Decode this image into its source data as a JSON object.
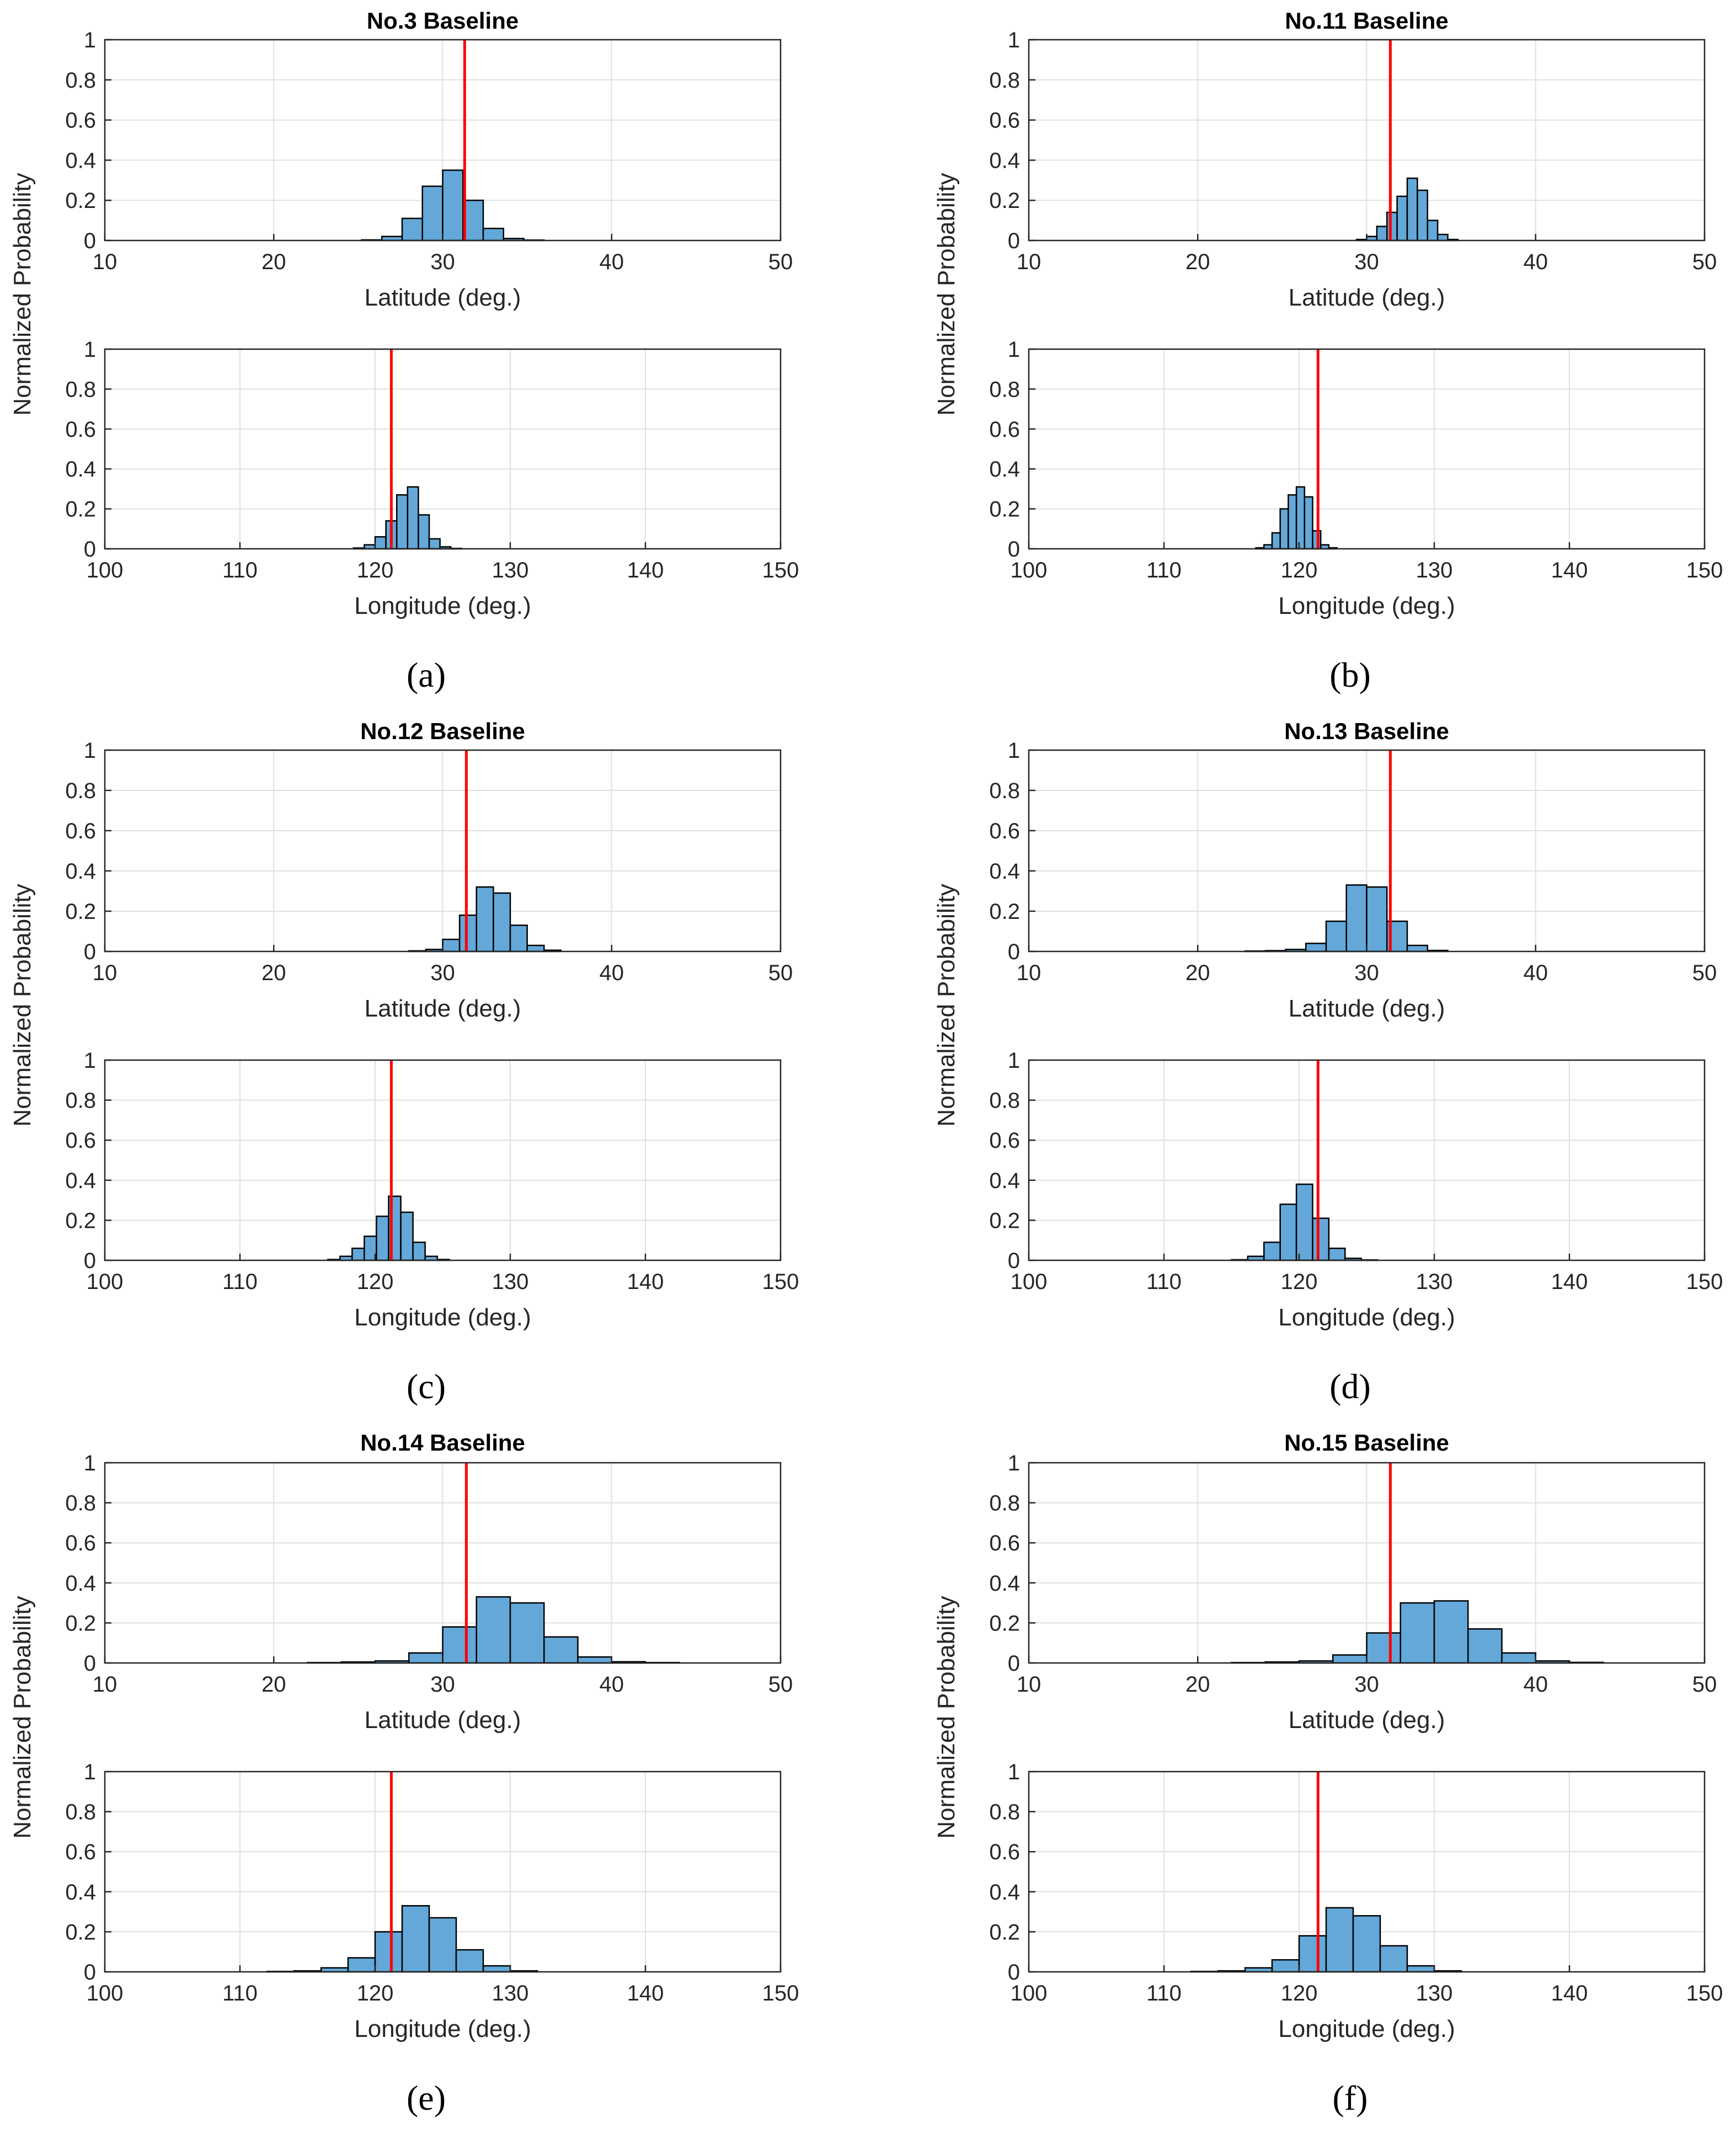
{
  "colors": {
    "bar_fill": "#63a8d8",
    "bar_edge": "#000000",
    "reference_line": "#ff0000",
    "grid": "#e0e0e0"
  },
  "chart_data": [
    {
      "panel": "(a)",
      "title": "No.3 Baseline",
      "ylabel": "Normalized Probability",
      "latitude": {
        "type": "bar",
        "xlabel": "Latitude (deg.)",
        "xlim": [
          10,
          50
        ],
        "ylim": [
          0,
          1
        ],
        "xticks": [
          10,
          20,
          30,
          40,
          50
        ],
        "yticks": [
          0,
          0.2,
          0.4,
          0.6,
          0.8,
          1
        ],
        "bin_width": 1.2,
        "bin_start": 25.2,
        "values": [
          0.003,
          0.02,
          0.11,
          0.27,
          0.35,
          0.2,
          0.06,
          0.01,
          0.002
        ],
        "reference": 31.3
      },
      "longitude": {
        "type": "bar",
        "xlabel": "Longitude (deg.)",
        "xlim": [
          100,
          150
        ],
        "ylim": [
          0,
          1
        ],
        "xticks": [
          100,
          110,
          120,
          130,
          140,
          150
        ],
        "yticks": [
          0,
          0.2,
          0.4,
          0.6,
          0.8,
          1
        ],
        "bin_width": 0.8,
        "bin_start": 118.4,
        "values": [
          0.004,
          0.02,
          0.06,
          0.14,
          0.27,
          0.31,
          0.17,
          0.05,
          0.01,
          0.002
        ],
        "reference": 121.2
      }
    },
    {
      "panel": "(b)",
      "title": "No.11 Baseline",
      "ylabel": "Normalized Probability",
      "latitude": {
        "type": "bar",
        "xlabel": "Latitude (deg.)",
        "xlim": [
          10,
          50
        ],
        "ylim": [
          0,
          1
        ],
        "xticks": [
          10,
          20,
          30,
          40,
          50
        ],
        "yticks": [
          0,
          0.2,
          0.4,
          0.6,
          0.8,
          1
        ],
        "bin_width": 0.6,
        "bin_start": 29.4,
        "values": [
          0.005,
          0.02,
          0.07,
          0.14,
          0.22,
          0.31,
          0.25,
          0.1,
          0.03,
          0.005
        ],
        "reference": 31.4
      },
      "longitude": {
        "type": "bar",
        "xlabel": "Longitude (deg.)",
        "xlim": [
          100,
          150
        ],
        "ylim": [
          0,
          1
        ],
        "xticks": [
          100,
          110,
          120,
          130,
          140,
          150
        ],
        "yticks": [
          0,
          0.2,
          0.4,
          0.6,
          0.8,
          1
        ],
        "bin_width": 0.6,
        "bin_start": 116.8,
        "values": [
          0.005,
          0.02,
          0.08,
          0.2,
          0.27,
          0.31,
          0.26,
          0.09,
          0.02,
          0.005
        ],
        "reference": 121.4
      }
    },
    {
      "panel": "(c)",
      "title": "No.12 Baseline",
      "ylabel": "Normalized Probability",
      "latitude": {
        "type": "bar",
        "xlabel": "Latitude (deg.)",
        "xlim": [
          10,
          50
        ],
        "ylim": [
          0,
          1
        ],
        "xticks": [
          10,
          20,
          30,
          40,
          50
        ],
        "yticks": [
          0,
          0.2,
          0.4,
          0.6,
          0.8,
          1
        ],
        "bin_width": 1.0,
        "bin_start": 28.0,
        "values": [
          0.003,
          0.01,
          0.06,
          0.18,
          0.32,
          0.29,
          0.13,
          0.03,
          0.006
        ],
        "reference": 31.4
      },
      "longitude": {
        "type": "bar",
        "xlabel": "Longitude (deg.)",
        "xlim": [
          100,
          150
        ],
        "ylim": [
          0,
          1
        ],
        "xticks": [
          100,
          110,
          120,
          130,
          140,
          150
        ],
        "yticks": [
          0,
          0.2,
          0.4,
          0.6,
          0.8,
          1
        ],
        "bin_width": 0.9,
        "bin_start": 116.5,
        "values": [
          0.004,
          0.02,
          0.06,
          0.12,
          0.22,
          0.32,
          0.24,
          0.09,
          0.02,
          0.004
        ],
        "reference": 121.2
      }
    },
    {
      "panel": "(d)",
      "title": "No.13 Baseline",
      "ylabel": "Normalized Probability",
      "latitude": {
        "type": "bar",
        "xlabel": "Latitude (deg.)",
        "xlim": [
          10,
          50
        ],
        "ylim": [
          0,
          1
        ],
        "xticks": [
          10,
          20,
          30,
          40,
          50
        ],
        "yticks": [
          0,
          0.2,
          0.4,
          0.6,
          0.8,
          1
        ],
        "bin_width": 1.2,
        "bin_start": 22.8,
        "values": [
          0.002,
          0.004,
          0.01,
          0.04,
          0.15,
          0.33,
          0.32,
          0.15,
          0.03,
          0.005
        ],
        "reference": 31.4
      },
      "longitude": {
        "type": "bar",
        "xlabel": "Longitude (deg.)",
        "xlim": [
          100,
          150
        ],
        "ylim": [
          0,
          1
        ],
        "xticks": [
          100,
          110,
          120,
          130,
          140,
          150
        ],
        "yticks": [
          0,
          0.2,
          0.4,
          0.6,
          0.8,
          1
        ],
        "bin_width": 1.2,
        "bin_start": 115.0,
        "values": [
          0.003,
          0.02,
          0.09,
          0.28,
          0.38,
          0.21,
          0.06,
          0.01,
          0.002
        ],
        "reference": 121.4
      }
    },
    {
      "panel": "(e)",
      "title": "No.14 Baseline",
      "ylabel": "Normalized Probability",
      "latitude": {
        "type": "bar",
        "xlabel": "Latitude (deg.)",
        "xlim": [
          10,
          50
        ],
        "ylim": [
          0,
          1
        ],
        "xticks": [
          10,
          20,
          30,
          40,
          50
        ],
        "yticks": [
          0,
          0.2,
          0.4,
          0.6,
          0.8,
          1
        ],
        "bin_width": 2.0,
        "bin_start": 22.0,
        "values": [
          0.002,
          0.005,
          0.01,
          0.05,
          0.18,
          0.33,
          0.3,
          0.13,
          0.03,
          0.006,
          0.002
        ],
        "reference": 31.4
      },
      "longitude": {
        "type": "bar",
        "xlabel": "Longitude (deg.)",
        "xlim": [
          100,
          150
        ],
        "ylim": [
          0,
          1
        ],
        "xticks": [
          100,
          110,
          120,
          130,
          140,
          150
        ],
        "yticks": [
          0,
          0.2,
          0.4,
          0.6,
          0.8,
          1
        ],
        "bin_width": 2.0,
        "bin_start": 112.0,
        "values": [
          0.002,
          0.005,
          0.02,
          0.07,
          0.2,
          0.33,
          0.27,
          0.11,
          0.03,
          0.005
        ],
        "reference": 121.2
      }
    },
    {
      "panel": "(f)",
      "title": "No.15 Baseline",
      "ylabel": "Normalized Probability",
      "latitude": {
        "type": "bar",
        "xlabel": "Latitude (deg.)",
        "xlim": [
          10,
          50
        ],
        "ylim": [
          0,
          1
        ],
        "xticks": [
          10,
          20,
          30,
          40,
          50
        ],
        "yticks": [
          0,
          0.2,
          0.4,
          0.6,
          0.8,
          1
        ],
        "bin_width": 2.0,
        "bin_start": 22.0,
        "values": [
          0.002,
          0.005,
          0.01,
          0.04,
          0.15,
          0.3,
          0.31,
          0.17,
          0.05,
          0.01,
          0.003
        ],
        "reference": 31.4
      },
      "longitude": {
        "type": "bar",
        "xlabel": "Longitude (deg.)",
        "xlim": [
          100,
          150
        ],
        "ylim": [
          0,
          1
        ],
        "xticks": [
          100,
          110,
          120,
          130,
          140,
          150
        ],
        "yticks": [
          0,
          0.2,
          0.4,
          0.6,
          0.8,
          1
        ],
        "bin_width": 2.0,
        "bin_start": 112.0,
        "values": [
          0.002,
          0.005,
          0.02,
          0.06,
          0.18,
          0.32,
          0.28,
          0.13,
          0.03,
          0.005
        ],
        "reference": 121.4
      }
    }
  ]
}
